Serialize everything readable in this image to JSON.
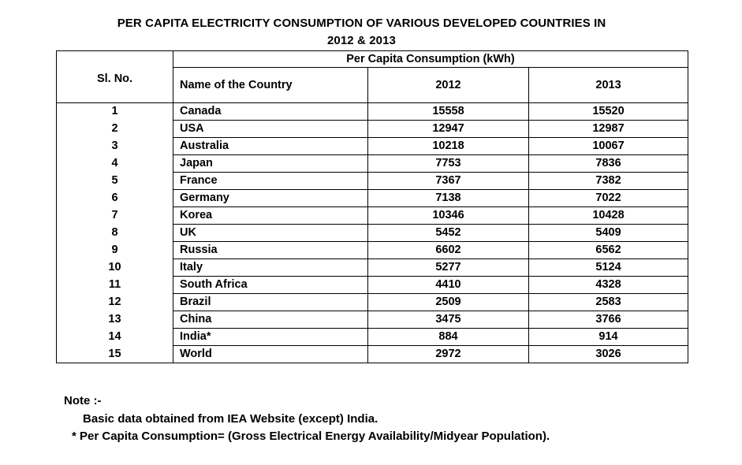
{
  "title": {
    "line1": "PER CAPITA ELECTRICITY CONSUMPTION OF VARIOUS DEVELOPED COUNTRIES IN",
    "line2": "2012 & 2013"
  },
  "table": {
    "header": {
      "sl_no": "Sl. No.",
      "group": "Per Capita Consumption  (kWh)",
      "name": "Name of the Country",
      "year1": "2012",
      "year2": "2013"
    },
    "rows": [
      {
        "sl": "1",
        "country": "Canada",
        "y2012": "15558",
        "y2013": "15520"
      },
      {
        "sl": "2",
        "country": "USA",
        "y2012": "12947",
        "y2013": "12987"
      },
      {
        "sl": "3",
        "country": "Australia",
        "y2012": "10218",
        "y2013": "10067"
      },
      {
        "sl": "4",
        "country": "Japan",
        "y2012": "7753",
        "y2013": "7836"
      },
      {
        "sl": "5",
        "country": "France",
        "y2012": "7367",
        "y2013": "7382"
      },
      {
        "sl": "6",
        "country": "Germany",
        "y2012": "7138",
        "y2013": "7022"
      },
      {
        "sl": "7",
        "country": "Korea",
        "y2012": "10346",
        "y2013": "10428"
      },
      {
        "sl": "8",
        "country": "UK",
        "y2012": "5452",
        "y2013": "5409"
      },
      {
        "sl": "9",
        "country": "Russia",
        "y2012": "6602",
        "y2013": "6562"
      },
      {
        "sl": "10",
        "country": "Italy",
        "y2012": "5277",
        "y2013": "5124"
      },
      {
        "sl": "11",
        "country": "South Africa",
        "y2012": "4410",
        "y2013": "4328"
      },
      {
        "sl": "12",
        "country": "Brazil",
        "y2012": "2509",
        "y2013": "2583"
      },
      {
        "sl": "13",
        "country": "China",
        "y2012": "3475",
        "y2013": "3766"
      },
      {
        "sl": "14",
        "country": "India*",
        "y2012": "884",
        "y2013": "914"
      },
      {
        "sl": "15",
        "country": "World",
        "y2012": "2972",
        "y2013": "3026"
      }
    ]
  },
  "note": {
    "heading": "Note :-",
    "line1": "Basic data obtained from IEA Website (except) India.",
    "line2": "* Per Capita Consumption=  (Gross Electrical Energy Availability/Midyear Population)."
  }
}
